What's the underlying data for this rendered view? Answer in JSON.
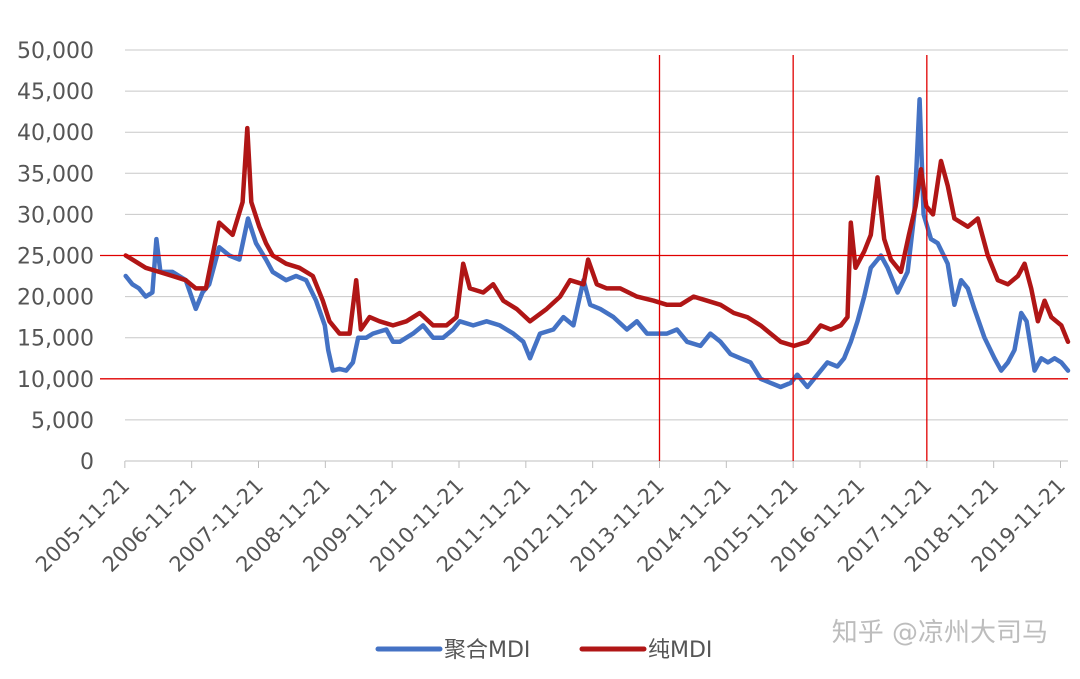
{
  "chart_data": {
    "type": "line",
    "title": "",
    "xlabel": "",
    "ylabel": "",
    "ylim": [
      0,
      50000
    ],
    "yticks": [
      0,
      5000,
      10000,
      15000,
      20000,
      25000,
      30000,
      35000,
      40000,
      45000,
      50000
    ],
    "ytick_labels": [
      "0",
      "5,000",
      "10,000",
      "15,000",
      "20,000",
      "25,000",
      "30,000",
      "35,000",
      "40,000",
      "45,000",
      "50,000"
    ],
    "xlim": [
      2005.89,
      2020.0
    ],
    "xtick_labels": [
      "2005-11-21",
      "2006-11-21",
      "2007-11-21",
      "2008-11-21",
      "2009-11-21",
      "2010-11-21",
      "2011-11-21",
      "2012-11-21",
      "2013-11-21",
      "2014-11-21",
      "2015-11-21",
      "2016-11-21",
      "2017-11-21",
      "2018-11-21",
      "2019-11-21"
    ],
    "grid": true,
    "legend_position": "bottom",
    "reference_lines": {
      "horizontal": [
        25000,
        10000
      ],
      "vertical": [
        "2013-11-21",
        "2015-11-21",
        "2017-11-21"
      ],
      "color": "#e00000"
    },
    "series": [
      {
        "name": "聚合MDI",
        "color": "#4472c4",
        "points": [
          [
            2005.9,
            22500
          ],
          [
            2006.0,
            21500
          ],
          [
            2006.1,
            21000
          ],
          [
            2006.2,
            20000
          ],
          [
            2006.3,
            20500
          ],
          [
            2006.36,
            27000
          ],
          [
            2006.42,
            23000
          ],
          [
            2006.6,
            23000
          ],
          [
            2006.8,
            22000
          ],
          [
            2006.95,
            18500
          ],
          [
            2007.05,
            20500
          ],
          [
            2007.15,
            21500
          ],
          [
            2007.3,
            26000
          ],
          [
            2007.45,
            25000
          ],
          [
            2007.6,
            24500
          ],
          [
            2007.73,
            29500
          ],
          [
            2007.85,
            26500
          ],
          [
            2008.0,
            24500
          ],
          [
            2008.1,
            23000
          ],
          [
            2008.3,
            22000
          ],
          [
            2008.45,
            22500
          ],
          [
            2008.6,
            22000
          ],
          [
            2008.75,
            19500
          ],
          [
            2008.88,
            16500
          ],
          [
            2008.93,
            13500
          ],
          [
            2009.0,
            11000
          ],
          [
            2009.1,
            11200
          ],
          [
            2009.2,
            11000
          ],
          [
            2009.3,
            12000
          ],
          [
            2009.38,
            15000
          ],
          [
            2009.5,
            15000
          ],
          [
            2009.6,
            15500
          ],
          [
            2009.8,
            16000
          ],
          [
            2009.9,
            14500
          ],
          [
            2010.0,
            14500
          ],
          [
            2010.2,
            15500
          ],
          [
            2010.35,
            16500
          ],
          [
            2010.5,
            15000
          ],
          [
            2010.65,
            15000
          ],
          [
            2010.8,
            16000
          ],
          [
            2010.9,
            17000
          ],
          [
            2011.1,
            16500
          ],
          [
            2011.3,
            17000
          ],
          [
            2011.5,
            16500
          ],
          [
            2011.7,
            15500
          ],
          [
            2011.85,
            14500
          ],
          [
            2011.95,
            12500
          ],
          [
            2012.0,
            13500
          ],
          [
            2012.1,
            15500
          ],
          [
            2012.3,
            16000
          ],
          [
            2012.45,
            17500
          ],
          [
            2012.6,
            16500
          ],
          [
            2012.75,
            22000
          ],
          [
            2012.85,
            19000
          ],
          [
            2013.0,
            18500
          ],
          [
            2013.2,
            17500
          ],
          [
            2013.4,
            16000
          ],
          [
            2013.55,
            17000
          ],
          [
            2013.7,
            15500
          ],
          [
            2013.85,
            15500
          ],
          [
            2014.0,
            15500
          ],
          [
            2014.15,
            16000
          ],
          [
            2014.3,
            14500
          ],
          [
            2014.5,
            14000
          ],
          [
            2014.65,
            15500
          ],
          [
            2014.8,
            14500
          ],
          [
            2014.95,
            13000
          ],
          [
            2015.1,
            12500
          ],
          [
            2015.25,
            12000
          ],
          [
            2015.4,
            10000
          ],
          [
            2015.55,
            9500
          ],
          [
            2015.7,
            9000
          ],
          [
            2015.85,
            9500
          ],
          [
            2015.95,
            10500
          ],
          [
            2016.1,
            9000
          ],
          [
            2016.25,
            10500
          ],
          [
            2016.4,
            12000
          ],
          [
            2016.55,
            11500
          ],
          [
            2016.65,
            12500
          ],
          [
            2016.75,
            14500
          ],
          [
            2016.85,
            17000
          ],
          [
            2016.95,
            20000
          ],
          [
            2017.05,
            23500
          ],
          [
            2017.2,
            25000
          ],
          [
            2017.3,
            23500
          ],
          [
            2017.45,
            20500
          ],
          [
            2017.6,
            23000
          ],
          [
            2017.7,
            30000
          ],
          [
            2017.78,
            44000
          ],
          [
            2017.84,
            30000
          ],
          [
            2017.95,
            27000
          ],
          [
            2018.05,
            26500
          ],
          [
            2018.2,
            24000
          ],
          [
            2018.3,
            19000
          ],
          [
            2018.4,
            22000
          ],
          [
            2018.5,
            21000
          ],
          [
            2018.6,
            18500
          ],
          [
            2018.75,
            15000
          ],
          [
            2018.9,
            12500
          ],
          [
            2019.0,
            11000
          ],
          [
            2019.1,
            12000
          ],
          [
            2019.2,
            13500
          ],
          [
            2019.3,
            18000
          ],
          [
            2019.38,
            17000
          ],
          [
            2019.5,
            11000
          ],
          [
            2019.6,
            12500
          ],
          [
            2019.7,
            12000
          ],
          [
            2019.8,
            12500
          ],
          [
            2019.9,
            12000
          ],
          [
            2020.0,
            11000
          ]
        ]
      },
      {
        "name": "纯MDI",
        "color": "#b01616",
        "points": [
          [
            2005.9,
            25000
          ],
          [
            2006.0,
            24500
          ],
          [
            2006.2,
            23500
          ],
          [
            2006.4,
            23000
          ],
          [
            2006.6,
            22500
          ],
          [
            2006.8,
            22000
          ],
          [
            2006.95,
            21000
          ],
          [
            2007.1,
            21000
          ],
          [
            2007.3,
            29000
          ],
          [
            2007.5,
            27500
          ],
          [
            2007.65,
            31500
          ],
          [
            2007.72,
            40500
          ],
          [
            2007.78,
            31500
          ],
          [
            2007.9,
            28500
          ],
          [
            2008.0,
            26500
          ],
          [
            2008.1,
            25000
          ],
          [
            2008.3,
            24000
          ],
          [
            2008.5,
            23500
          ],
          [
            2008.7,
            22500
          ],
          [
            2008.85,
            19500
          ],
          [
            2008.95,
            17000
          ],
          [
            2009.1,
            15500
          ],
          [
            2009.25,
            15500
          ],
          [
            2009.35,
            22000
          ],
          [
            2009.42,
            16000
          ],
          [
            2009.55,
            17500
          ],
          [
            2009.7,
            17000
          ],
          [
            2009.9,
            16500
          ],
          [
            2010.1,
            17000
          ],
          [
            2010.3,
            18000
          ],
          [
            2010.5,
            16500
          ],
          [
            2010.7,
            16500
          ],
          [
            2010.85,
            17500
          ],
          [
            2010.95,
            24000
          ],
          [
            2011.05,
            21000
          ],
          [
            2011.25,
            20500
          ],
          [
            2011.4,
            21500
          ],
          [
            2011.55,
            19500
          ],
          [
            2011.75,
            18500
          ],
          [
            2011.95,
            17000
          ],
          [
            2012.2,
            18500
          ],
          [
            2012.4,
            20000
          ],
          [
            2012.55,
            22000
          ],
          [
            2012.75,
            21500
          ],
          [
            2012.82,
            24500
          ],
          [
            2012.95,
            21500
          ],
          [
            2013.1,
            21000
          ],
          [
            2013.3,
            21000
          ],
          [
            2013.55,
            20000
          ],
          [
            2013.8,
            19500
          ],
          [
            2014.0,
            19000
          ],
          [
            2014.2,
            19000
          ],
          [
            2014.4,
            20000
          ],
          [
            2014.6,
            19500
          ],
          [
            2014.8,
            19000
          ],
          [
            2015.0,
            18000
          ],
          [
            2015.2,
            17500
          ],
          [
            2015.4,
            16500
          ],
          [
            2015.55,
            15500
          ],
          [
            2015.7,
            14500
          ],
          [
            2015.9,
            14000
          ],
          [
            2016.1,
            14500
          ],
          [
            2016.3,
            16500
          ],
          [
            2016.45,
            16000
          ],
          [
            2016.6,
            16500
          ],
          [
            2016.7,
            17500
          ],
          [
            2016.75,
            29000
          ],
          [
            2016.82,
            23500
          ],
          [
            2016.95,
            25500
          ],
          [
            2017.05,
            27500
          ],
          [
            2017.15,
            34500
          ],
          [
            2017.25,
            27000
          ],
          [
            2017.35,
            24500
          ],
          [
            2017.5,
            23000
          ],
          [
            2017.62,
            27500
          ],
          [
            2017.72,
            31000
          ],
          [
            2017.8,
            35500
          ],
          [
            2017.88,
            31000
          ],
          [
            2017.98,
            30000
          ],
          [
            2018.1,
            36500
          ],
          [
            2018.2,
            33500
          ],
          [
            2018.3,
            29500
          ],
          [
            2018.5,
            28500
          ],
          [
            2018.65,
            29500
          ],
          [
            2018.8,
            25000
          ],
          [
            2018.95,
            22000
          ],
          [
            2019.1,
            21500
          ],
          [
            2019.25,
            22500
          ],
          [
            2019.35,
            24000
          ],
          [
            2019.45,
            21000
          ],
          [
            2019.55,
            17000
          ],
          [
            2019.65,
            19500
          ],
          [
            2019.75,
            17500
          ],
          [
            2019.9,
            16500
          ],
          [
            2020.0,
            14500
          ]
        ]
      }
    ]
  },
  "watermark": "知乎 @凉州大司马"
}
